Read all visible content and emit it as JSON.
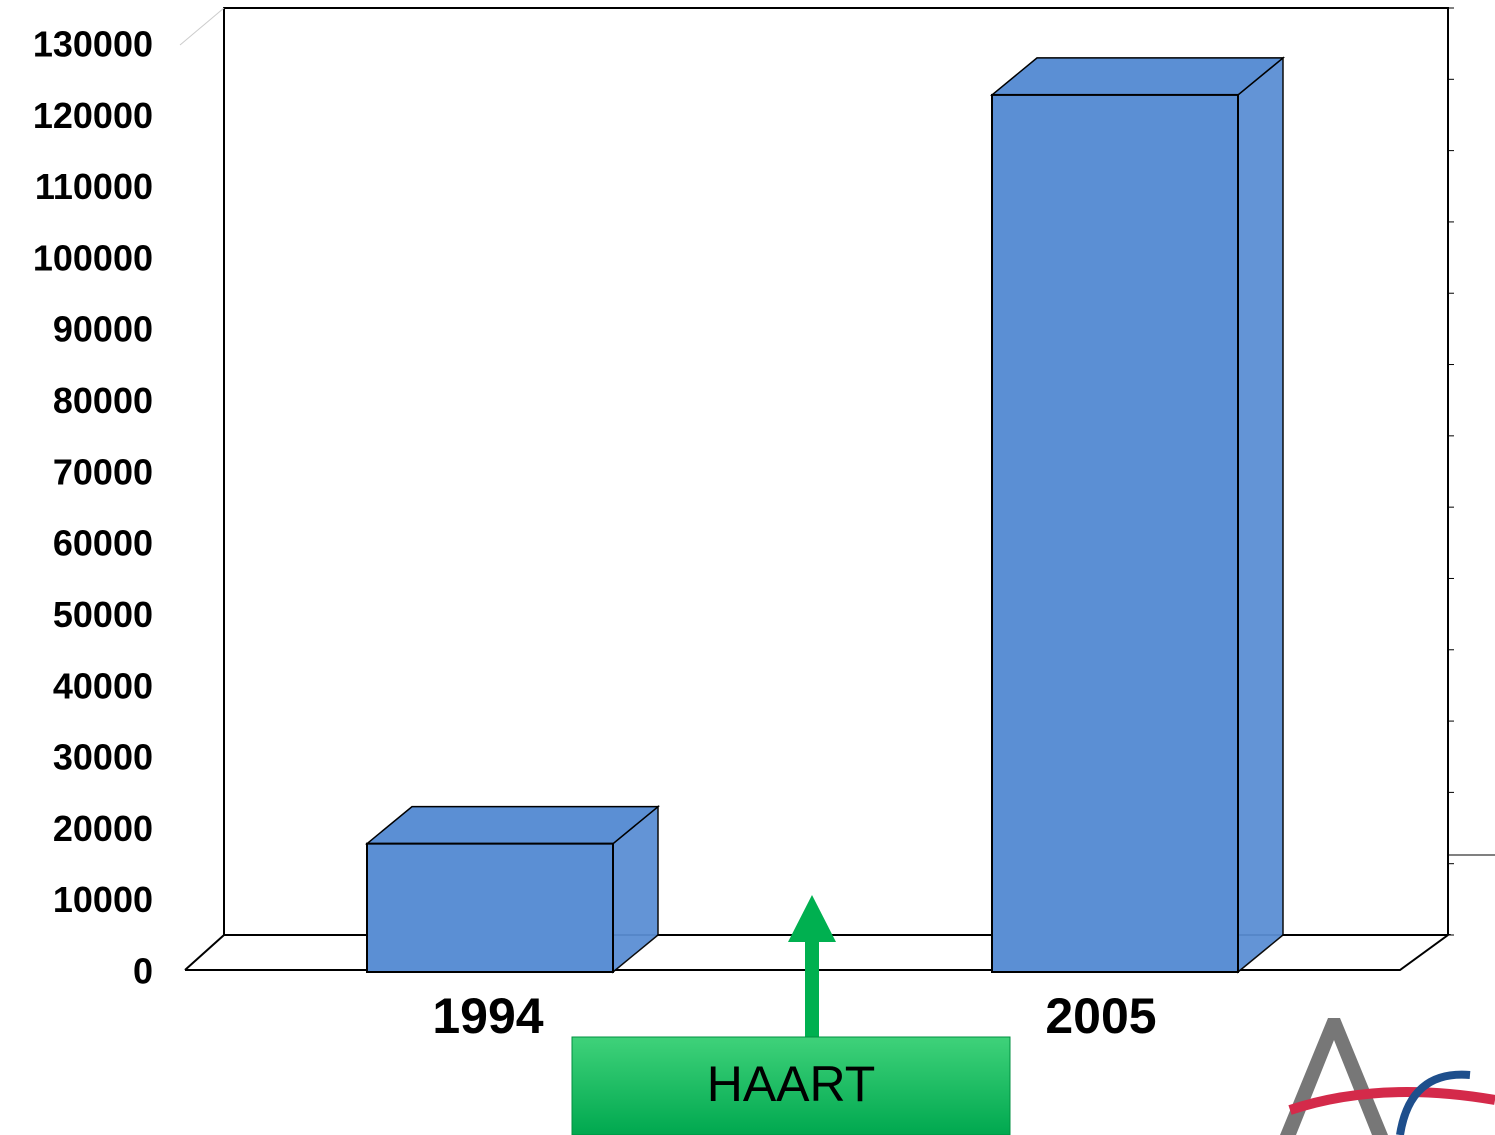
{
  "chart_data": {
    "type": "bar",
    "categories": [
      "1994",
      "2005"
    ],
    "values": [
      18000,
      123000
    ],
    "color": "#5b8fd4",
    "ylim": [
      0,
      130000
    ],
    "yticks": [
      0,
      10000,
      20000,
      30000,
      40000,
      50000,
      60000,
      70000,
      80000,
      90000,
      100000,
      110000,
      120000,
      130000
    ],
    "annotation": "HAART"
  }
}
